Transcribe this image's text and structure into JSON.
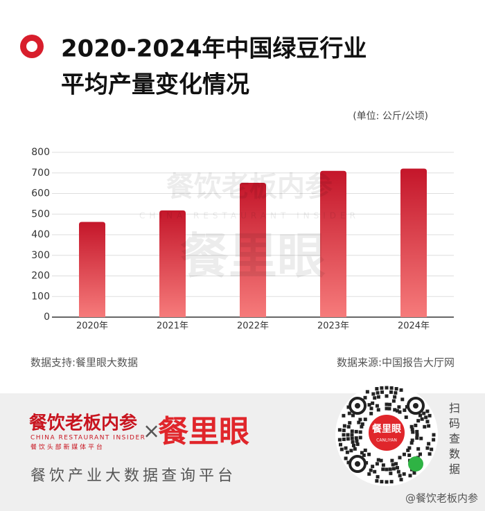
{
  "chart_data": {
    "type": "bar",
    "title": [
      "2020-2024年中国绿豆行业",
      "平均产量变化情况"
    ],
    "unit": "(单位: 公斤/公顷)",
    "categories": [
      "2020年",
      "2021年",
      "2022年",
      "2023年",
      "2024年"
    ],
    "values": [
      462,
      518,
      652,
      710,
      721
    ],
    "gradient": [
      "#c4162a",
      "#f67b7b"
    ],
    "ylim": [
      0,
      800
    ],
    "yticks": [
      0,
      100,
      200,
      300,
      400,
      500,
      600,
      700,
      800
    ],
    "grid": true,
    "watermark": [
      "餐饮老板内参",
      "CHINA RESTAURANT INSIDER",
      "餐里眼"
    ],
    "source_left": "数据支持:餐里眼大数据",
    "source_right": "数据来源:中国报告大厅网"
  },
  "footer": {
    "brand": "餐饮老板内参",
    "brand_en": "CHINA RESTAURANT INSIDER",
    "brand_slogan": "餐 饮 头 部 新 媒 体 平 台",
    "times": "×",
    "partner": "餐里眼",
    "tagline": "餐饮产业大数据查询平台",
    "qr_name": "餐里眼",
    "qr_en": "CANLIYAN",
    "scan": "扫码查数据",
    "weibo": "@餐饮老板内参"
  }
}
